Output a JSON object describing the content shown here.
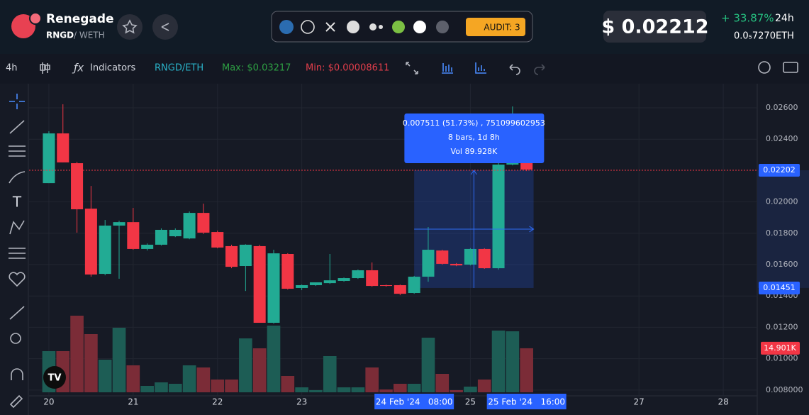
{
  "header": {
    "name": "Renegade",
    "symbol": "RNGD",
    "quote": "/ WETH",
    "audit": "AUDIT: 3",
    "price": "$ 0.02212",
    "change": "+ 33.87%",
    "period": "24h",
    "eth_price": "0.0₅7270",
    "eth": "ETH"
  },
  "toolbar": {
    "interval": "4h",
    "indicators": "Indicators",
    "pair": "RNGD/ETH",
    "max": "Max: $0.03217",
    "min": "Min: $0.00008611"
  },
  "chart_data": {
    "type": "candlestick",
    "x": [
      20,
      20.1667,
      20.3333,
      20.5,
      20.6667,
      20.8333,
      21,
      21.1667,
      21.3333,
      21.5,
      21.6667,
      21.8333,
      22,
      22.1667,
      22.3333,
      22.5,
      22.6667,
      22.8333,
      23,
      23.1667,
      23.3333,
      23.5,
      23.6667,
      23.8333,
      24,
      24.1667,
      24.3333,
      24.5,
      24.6667,
      24.8333,
      25,
      25.1667,
      25.3333,
      25.5,
      25.6667
    ],
    "open": [
      0.0212,
      0.02437,
      0.02247,
      0.01957,
      0.01541,
      0.01849,
      0.01871,
      0.017,
      0.01727,
      0.01781,
      0.01767,
      0.0193,
      0.01808,
      0.01718,
      0.01591,
      0.01718,
      0.01229,
      0.01668,
      0.01451,
      0.01469,
      0.01482,
      0.01496,
      0.01514,
      0.01564,
      0.01469,
      0.01469,
      0.01419,
      0.01523,
      0.0169,
      0.01605,
      0.016,
      0.017,
      0.01577,
      0.02238,
      0.02252
    ],
    "high": [
      0.02451,
      0.02623,
      0.02256,
      0.02102,
      0.01885,
      0.0188,
      0.01962,
      0.01735,
      0.01831,
      0.01831,
      0.01939,
      0.01989,
      0.01817,
      0.01727,
      0.0173,
      0.01727,
      0.01695,
      0.01673,
      0.01473,
      0.01478,
      0.01668,
      0.01518,
      0.01569,
      0.01614,
      0.01473,
      0.01473,
      0.01528,
      0.0184,
      0.01695,
      0.0161,
      0.01705,
      0.01705,
      0.02248,
      0.02609,
      0.02256
    ],
    "low": [
      0.0212,
      0.02252,
      0.01804,
      0.01523,
      0.01532,
      0.0151,
      0.01695,
      0.0169,
      0.01722,
      0.01776,
      0.01762,
      0.01795,
      0.01704,
      0.01577,
      0.01432,
      0.01229,
      0.01224,
      0.01441,
      0.01437,
      0.01464,
      0.01477,
      0.01491,
      0.01509,
      0.01459,
      0.01459,
      0.01405,
      0.01414,
      0.01491,
      0.016,
      0.0159,
      0.01595,
      0.01573,
      0.01568,
      0.02233,
      0.02197
    ],
    "close": [
      0.02437,
      0.02252,
      0.01953,
      0.01537,
      0.01849,
      0.01871,
      0.017,
      0.01727,
      0.01822,
      0.01822,
      0.0193,
      0.01804,
      0.01709,
      0.01586,
      0.01727,
      0.01229,
      0.01672,
      0.01446,
      0.01469,
      0.01487,
      0.015,
      0.01514,
      0.01564,
      0.01464,
      0.01464,
      0.01414,
      0.01523,
      0.01695,
      0.01605,
      0.01595,
      0.017,
      0.01577,
      0.02238,
      0.02252,
      0.02206
    ],
    "volume": [
      13920,
      13920,
      25920,
      19680,
      11040,
      21840,
      9120,
      2160,
      3360,
      2880,
      9120,
      8400,
      4320,
      4320,
      18240,
      14880,
      22560,
      5520,
      1680,
      720,
      12240,
      1680,
      1680,
      8400,
      960,
      2880,
      2880,
      18480,
      6240,
      720,
      1920,
      4320,
      20880,
      20640,
      14901
    ],
    "volume_label": "14.901K",
    "up_color": "#22ab94",
    "down_color": "#f23645",
    "up_volume_color": "#1d5d55",
    "down_volume_color": "#7b2c37",
    "xlim": [
      19.765,
      28.403
    ],
    "xticks": [
      20,
      21,
      22,
      23,
      25,
      27,
      28
    ],
    "ylim": [
      0.00763,
      0.02754
    ],
    "yticks": [
      {
        "value": 0.026,
        "label": "0.02600"
      },
      {
        "value": 0.024,
        "label": "0.02400"
      },
      {
        "value": 0.02,
        "label": "0.02000"
      },
      {
        "value": 0.018,
        "label": "0.01800"
      },
      {
        "value": 0.016,
        "label": "0.01600"
      },
      {
        "value": 0.014,
        "label": "0.01400"
      },
      {
        "value": 0.012,
        "label": "0.01200"
      },
      {
        "value": 0.01,
        "label": "0.01000"
      },
      {
        "value": 0.008,
        "label": "0.008000"
      }
    ],
    "price_markers": [
      {
        "value": 0.02202,
        "label": "0.02202"
      },
      {
        "value": 0.01451,
        "label": "0.01451"
      }
    ],
    "range_labels": [
      {
        "value": 24.3333,
        "label": "24 Feb '24   08:00"
      },
      {
        "value": 25.6667,
        "label": "25 Feb '24   16:00"
      }
    ],
    "measure": [
      "0.007511 (51.73%) , 751099602953",
      "8 bars, 1d 8h",
      "Vol 89.928K"
    ],
    "grid": true
  }
}
